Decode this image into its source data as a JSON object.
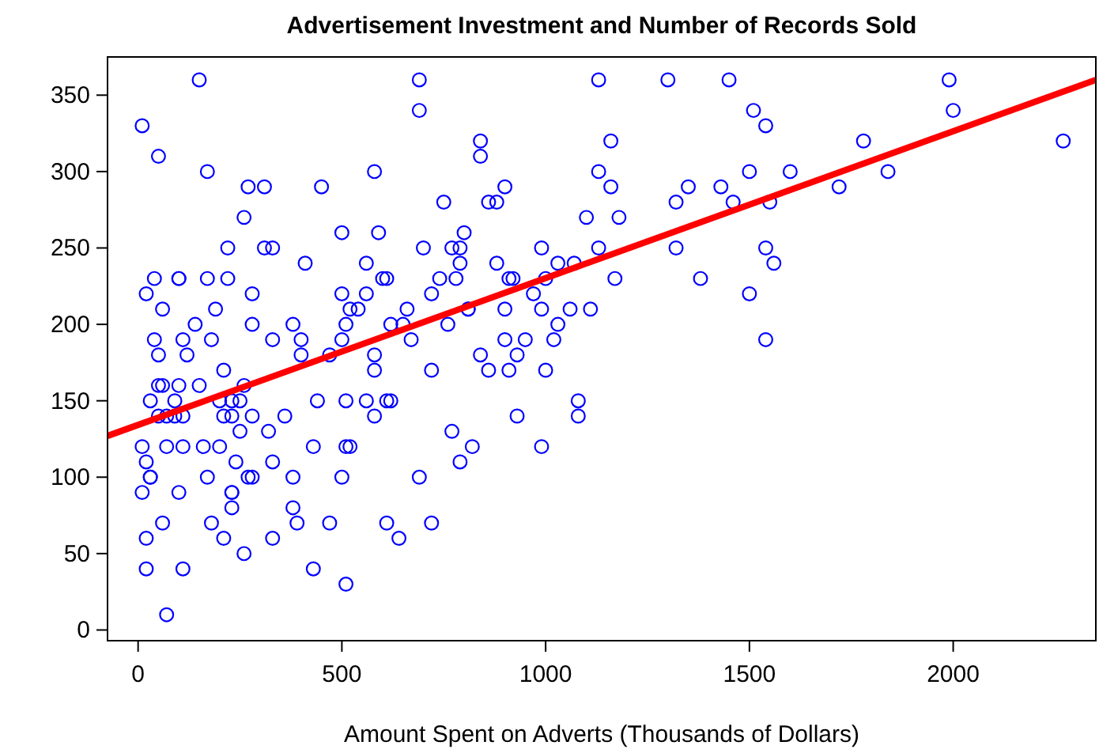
{
  "chart_data": {
    "type": "scatter",
    "title": "Advertisement Investment and Number of Records Sold",
    "xlabel": "Amount Spent on Adverts (Thousands of Dollars)",
    "xlim": [
      -75,
      2350
    ],
    "ylim": [
      -7,
      375
    ],
    "xticks": [
      0,
      500,
      1000,
      1500,
      2000
    ],
    "yticks": [
      0,
      50,
      100,
      150,
      200,
      250,
      300,
      350
    ],
    "grid": false,
    "marker": "circle",
    "series": [
      {
        "color": "#0000ff",
        "x": [
          150,
          690,
          1130,
          1300,
          1450,
          1990,
          690,
          1510,
          2000,
          10,
          1540,
          840,
          1160,
          1780,
          2270,
          50,
          840,
          170,
          580,
          1130,
          1500,
          1600,
          1840,
          270,
          310,
          450,
          900,
          1160,
          1350,
          1430,
          1720,
          750,
          860,
          880,
          1320,
          1460,
          1550,
          260,
          1100,
          1180,
          500,
          590,
          800,
          220,
          310,
          330,
          700,
          770,
          790,
          990,
          1130,
          1320,
          1540,
          410,
          560,
          790,
          880,
          1030,
          1070,
          1560,
          40,
          100,
          100,
          170,
          220,
          600,
          610,
          740,
          780,
          910,
          920,
          1000,
          1170,
          1380,
          20,
          280,
          500,
          560,
          720,
          970,
          1500,
          60,
          190,
          520,
          540,
          660,
          810,
          810,
          900,
          990,
          1060,
          1110,
          140,
          280,
          380,
          510,
          620,
          650,
          760,
          1030,
          40,
          110,
          180,
          330,
          400,
          500,
          670,
          900,
          950,
          1020,
          1540,
          50,
          120,
          400,
          470,
          580,
          840,
          930,
          210,
          580,
          720,
          860,
          910,
          1000,
          50,
          60,
          100,
          150,
          260,
          30,
          90,
          200,
          230,
          250,
          440,
          510,
          560,
          610,
          620,
          1080,
          50,
          70,
          90,
          110,
          210,
          230,
          280,
          360,
          580,
          930,
          1080,
          250,
          320,
          770,
          10,
          70,
          110,
          160,
          200,
          430,
          510,
          520,
          820,
          990,
          20,
          240,
          330,
          790,
          30,
          30,
          170,
          270,
          280,
          380,
          500,
          690,
          10,
          100,
          230,
          230,
          230,
          380,
          60,
          180,
          390,
          470,
          610,
          720,
          20,
          210,
          330,
          640,
          260,
          20,
          110,
          430,
          510,
          70
        ],
        "values": [
          360,
          360,
          360,
          360,
          360,
          360,
          340,
          340,
          340,
          330,
          330,
          320,
          320,
          320,
          320,
          310,
          310,
          300,
          300,
          300,
          300,
          300,
          300,
          290,
          290,
          290,
          290,
          290,
          290,
          290,
          290,
          280,
          280,
          280,
          280,
          280,
          280,
          270,
          270,
          270,
          260,
          260,
          260,
          250,
          250,
          250,
          250,
          250,
          250,
          250,
          250,
          250,
          250,
          240,
          240,
          240,
          240,
          240,
          240,
          240,
          230,
          230,
          230,
          230,
          230,
          230,
          230,
          230,
          230,
          230,
          230,
          230,
          230,
          230,
          220,
          220,
          220,
          220,
          220,
          220,
          220,
          210,
          210,
          210,
          210,
          210,
          210,
          210,
          210,
          210,
          210,
          210,
          200,
          200,
          200,
          200,
          200,
          200,
          200,
          200,
          190,
          190,
          190,
          190,
          190,
          190,
          190,
          190,
          190,
          190,
          190,
          180,
          180,
          180,
          180,
          180,
          180,
          180,
          170,
          170,
          170,
          170,
          170,
          170,
          160,
          160,
          160,
          160,
          160,
          150,
          150,
          150,
          150,
          150,
          150,
          150,
          150,
          150,
          150,
          150,
          140,
          140,
          140,
          140,
          140,
          140,
          140,
          140,
          140,
          140,
          140,
          130,
          130,
          130,
          120,
          120,
          120,
          120,
          120,
          120,
          120,
          120,
          120,
          120,
          110,
          110,
          110,
          110,
          100,
          100,
          100,
          100,
          100,
          100,
          100,
          100,
          90,
          90,
          90,
          90,
          80,
          80,
          70,
          70,
          70,
          70,
          70,
          70,
          60,
          60,
          60,
          60,
          50,
          40,
          40,
          40,
          30,
          10
        ]
      },
      {
        "type": "line",
        "color": "#ff0000",
        "marker": "none",
        "x": [
          -75,
          2350
        ],
        "values": [
          127,
          360
        ]
      }
    ]
  }
}
